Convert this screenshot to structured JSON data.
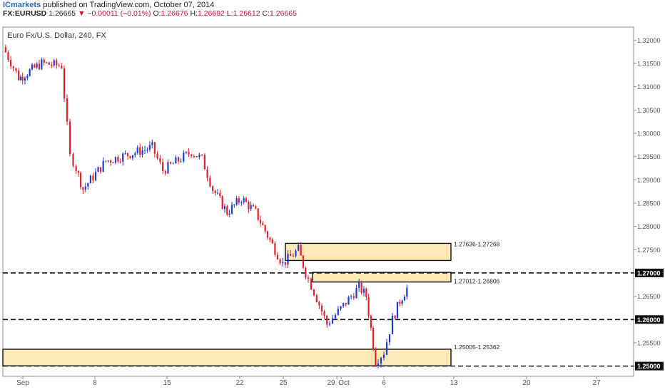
{
  "header": {
    "brand": "ICmarkets",
    "published": " published on TradingView.com, October 07, 2014",
    "symbol": "FX:EURUSD",
    "last": "1.26665",
    "change_arrow": "▼",
    "change": "−0.00011 (−0.01%)",
    "o_label": "O:",
    "o_value": "1.26676",
    "h_label": "H:",
    "h_value": "1.26692",
    "l_label": "L:",
    "l_value": "1.26612",
    "c_label": "C:",
    "c_value": "1.26665"
  },
  "chart_data": {
    "type": "candlestick",
    "title": "Euro Fx/U.S. Dollar, 240, FX",
    "ylim": [
      1.2478,
      1.3228
    ],
    "y_ticks": [
      "1.32000",
      "1.31500",
      "1.31000",
      "1.30500",
      "1.30000",
      "1.29500",
      "1.29000",
      "1.28500",
      "1.28000",
      "1.27500",
      "1.27000",
      "1.26500",
      "1.26000",
      "1.25500",
      "1.25000"
    ],
    "highlighted_ticks": [
      "1.27000",
      "1.26000",
      "1.25000"
    ],
    "x_ticks": [
      "Sep",
      "8",
      "15",
      "22",
      "25",
      "29",
      "Oct",
      "6",
      "13",
      "20",
      "27"
    ],
    "zones": [
      {
        "label": "1.27636-1.27268",
        "low": 1.27268,
        "high": 1.27636
      },
      {
        "label": "1.27012-1.26806",
        "low": 1.26806,
        "high": 1.27012
      },
      {
        "label": "1.25005-1.25362",
        "low": 1.25005,
        "high": 1.25362
      }
    ],
    "levels": [
      1.27,
      1.26,
      1.25
    ],
    "colors": {
      "up": "#1f3bd6",
      "down": "#e0202a",
      "zone": "#fde9b5",
      "level": "#111111"
    },
    "path": [
      [
        "Sep",
        1.3185
      ],
      [
        "Sep",
        1.312
      ],
      [
        "8",
        1.312
      ],
      [
        "8",
        1.315
      ],
      [
        "8",
        1.3145
      ],
      [
        "8",
        1.295
      ],
      [
        "8",
        1.294
      ],
      [
        "8",
        1.288
      ],
      [
        "15",
        1.294
      ],
      [
        "15",
        1.297
      ],
      [
        "15",
        1.292
      ],
      [
        "15",
        1.296
      ],
      [
        "22",
        1.2945
      ],
      [
        "22",
        1.288
      ],
      [
        "22",
        1.283
      ],
      [
        "22",
        1.286
      ],
      [
        "25",
        1.283
      ],
      [
        "25",
        1.277
      ],
      [
        "25",
        1.272
      ],
      [
        "25",
        1.275
      ],
      [
        "29",
        1.27
      ],
      [
        "29",
        1.266
      ],
      [
        "29",
        1.259
      ],
      [
        "29",
        1.261
      ],
      [
        "Oct",
        1.267
      ],
      [
        "Oct",
        1.265
      ],
      [
        "Oct",
        1.251
      ],
      [
        "6",
        1.253
      ],
      [
        "6",
        1.26
      ],
      [
        "6",
        1.264
      ],
      [
        "6",
        1.2667
      ]
    ]
  }
}
